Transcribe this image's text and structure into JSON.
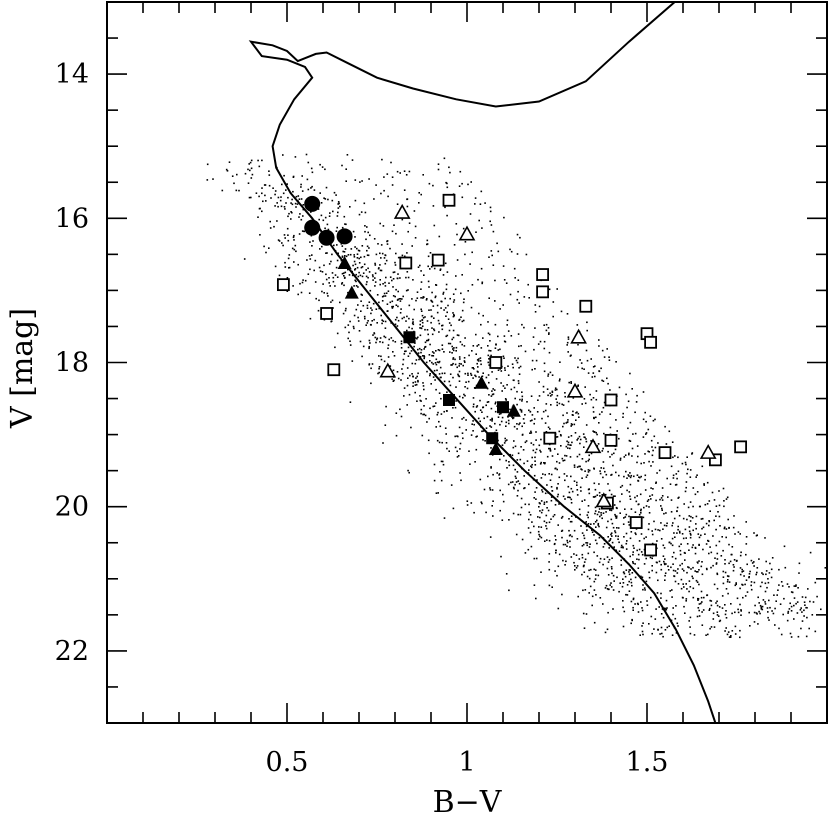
{
  "chart_data": {
    "type": "scatter",
    "title": "",
    "xlabel": "B−V",
    "ylabel": "V [mag]",
    "xlim": [
      0.0,
      2.0
    ],
    "ylim": [
      23.0,
      13.0
    ],
    "y_inverted": true,
    "x_ticks": [
      0.5,
      1.0,
      1.5
    ],
    "x_tick_labels": [
      "0.5",
      "1",
      "1.5"
    ],
    "y_ticks": [
      14,
      16,
      18,
      20,
      22
    ],
    "y_tick_labels": [
      "14",
      "16",
      "18",
      "20",
      "22"
    ],
    "x_minor_step": 0.1,
    "y_minor_step": 0.5,
    "grid": false,
    "legend": false,
    "background_field": {
      "description_marker": "dot",
      "approx_count": 3000,
      "seed": 7
    },
    "isochrone": [
      [
        1.75,
        12.55
      ],
      [
        1.6,
        12.9
      ],
      [
        1.45,
        13.55
      ],
      [
        1.33,
        14.1
      ],
      [
        1.2,
        14.38
      ],
      [
        1.08,
        14.45
      ],
      [
        0.97,
        14.35
      ],
      [
        0.85,
        14.2
      ],
      [
        0.75,
        14.05
      ],
      [
        0.67,
        13.85
      ],
      [
        0.61,
        13.7
      ],
      [
        0.58,
        13.72
      ],
      [
        0.55,
        13.78
      ],
      [
        0.53,
        13.82
      ],
      [
        0.5,
        13.68
      ],
      [
        0.46,
        13.6
      ],
      [
        0.4,
        13.55
      ],
      [
        0.43,
        13.75
      ],
      [
        0.5,
        13.8
      ],
      [
        0.55,
        13.9
      ],
      [
        0.57,
        14.05
      ],
      [
        0.52,
        14.35
      ],
      [
        0.48,
        14.7
      ],
      [
        0.46,
        15.0
      ],
      [
        0.47,
        15.3
      ],
      [
        0.51,
        15.65
      ],
      [
        0.57,
        16.0
      ],
      [
        0.64,
        16.5
      ],
      [
        0.72,
        17.0
      ],
      [
        0.8,
        17.5
      ],
      [
        0.88,
        18.0
      ],
      [
        0.97,
        18.5
      ],
      [
        1.06,
        19.0
      ],
      [
        1.16,
        19.5
      ],
      [
        1.27,
        20.0
      ],
      [
        1.37,
        20.4
      ],
      [
        1.45,
        20.8
      ],
      [
        1.52,
        21.2
      ],
      [
        1.58,
        21.7
      ],
      [
        1.63,
        22.2
      ],
      [
        1.67,
        22.7
      ],
      [
        1.69,
        23.0
      ]
    ],
    "series": [
      {
        "marker": "filled-circle",
        "points": [
          [
            0.57,
            15.8
          ],
          [
            0.57,
            16.13
          ],
          [
            0.61,
            16.27
          ],
          [
            0.66,
            16.25
          ]
        ]
      },
      {
        "marker": "filled-triangle",
        "points": [
          [
            0.66,
            16.62
          ],
          [
            0.68,
            17.03
          ],
          [
            1.04,
            18.28
          ],
          [
            1.08,
            19.2
          ],
          [
            1.13,
            18.67
          ]
        ]
      },
      {
        "marker": "filled-square",
        "points": [
          [
            0.84,
            17.65
          ],
          [
            0.95,
            18.52
          ],
          [
            1.07,
            19.05
          ],
          [
            1.1,
            18.62
          ]
        ]
      },
      {
        "marker": "open-square",
        "points": [
          [
            0.95,
            15.75
          ],
          [
            0.83,
            16.62
          ],
          [
            0.92,
            16.58
          ],
          [
            1.21,
            16.78
          ],
          [
            1.21,
            17.02
          ],
          [
            0.49,
            16.92
          ],
          [
            0.61,
            17.32
          ],
          [
            1.33,
            17.22
          ],
          [
            1.5,
            17.6
          ],
          [
            1.51,
            17.72
          ],
          [
            0.63,
            18.1
          ],
          [
            1.08,
            18.0
          ],
          [
            1.4,
            18.52
          ],
          [
            1.23,
            19.05
          ],
          [
            1.4,
            19.08
          ],
          [
            1.55,
            19.25
          ],
          [
            1.69,
            19.35
          ],
          [
            1.76,
            19.17
          ],
          [
            1.39,
            19.95
          ],
          [
            1.47,
            20.22
          ],
          [
            1.51,
            20.6
          ]
        ]
      },
      {
        "marker": "open-triangle",
        "points": [
          [
            0.82,
            15.92
          ],
          [
            1.0,
            16.22
          ],
          [
            1.31,
            17.65
          ],
          [
            0.78,
            18.12
          ],
          [
            1.3,
            18.4
          ],
          [
            1.35,
            19.17
          ],
          [
            1.67,
            19.25
          ],
          [
            1.38,
            19.92
          ]
        ]
      }
    ]
  }
}
